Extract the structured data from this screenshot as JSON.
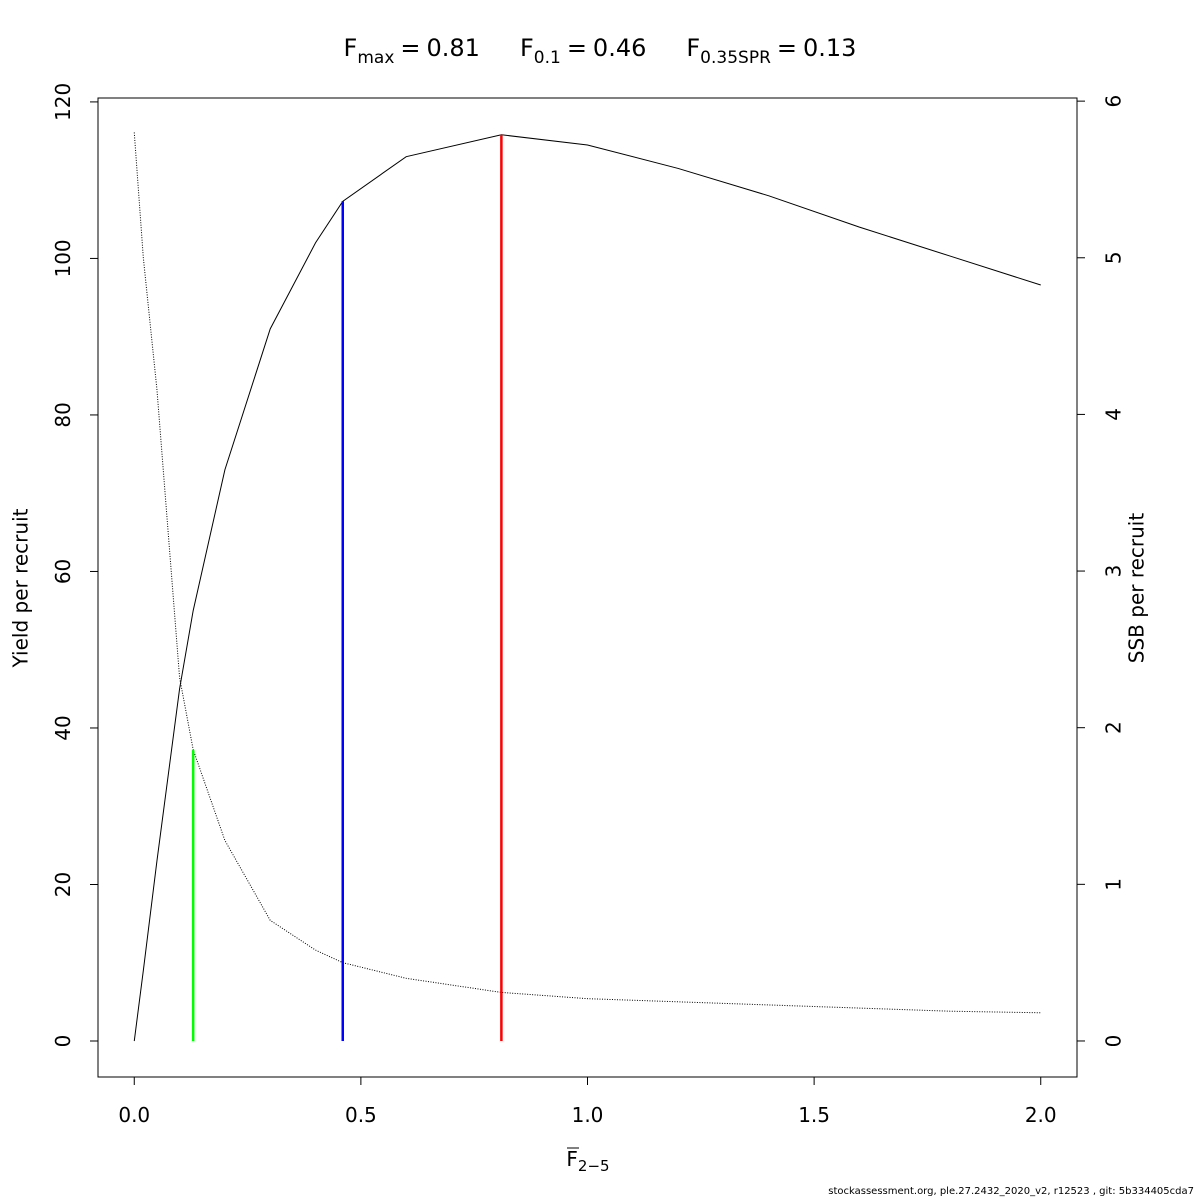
{
  "chart_data": {
    "type": "line",
    "references": [
      {
        "symbol": "F",
        "subscript": "max",
        "relation": "=",
        "x": 0.81,
        "ymax": 115.8,
        "color": "#ff0000"
      },
      {
        "symbol": "F",
        "subscript": "0.1",
        "relation": "=",
        "x": 0.46,
        "ymax": 107.3,
        "color": "#0000ff"
      },
      {
        "symbol": "F",
        "subscript": "0.35SPR",
        "relation": "=",
        "x": 0.13,
        "ymax": 37.2,
        "color": "#00ff00"
      }
    ],
    "xlabel": {
      "symbol": "F",
      "subscript": "2−5"
    },
    "ylabel": "Yield per recruit",
    "y2label": "SSB per recruit",
    "footer": "stockassessment.org, ple.27.2432_2020_v2, r12523 , git: 5b334405cda7",
    "x": [
      0,
      0.02,
      0.05,
      0.1,
      0.13,
      0.2,
      0.3,
      0.4,
      0.46,
      0.6,
      0.81,
      1.0,
      1.2,
      1.4,
      1.6,
      1.8,
      2.0
    ],
    "series": [
      {
        "name": "Yield per recruit",
        "color": "#000000",
        "axis": "y",
        "dash": "solid",
        "values": [
          0,
          9,
          23,
          45,
          55,
          73,
          91,
          102,
          107.3,
          113,
          115.8,
          114.5,
          111.5,
          108,
          104,
          100.3,
          96.6
        ]
      },
      {
        "name": "SSB per recruit",
        "color": "#000000",
        "axis": "y2",
        "dash": "dotted",
        "values": [
          5.8,
          5.0,
          4.16,
          2.32,
          1.86,
          1.28,
          0.77,
          0.58,
          0.5,
          0.4,
          0.31,
          0.27,
          0.25,
          0.23,
          0.21,
          0.19,
          0.18
        ]
      }
    ],
    "xlim": [
      -0.08,
      2.08
    ],
    "ylim": [
      -4.6,
      120.5
    ],
    "y2lim": [
      -0.23,
      6.02
    ],
    "xticks": [
      {
        "value": 0,
        "label": "0.0"
      },
      {
        "value": 0.5,
        "label": "0.5"
      },
      {
        "value": 1,
        "label": "1.0"
      },
      {
        "value": 1.5,
        "label": "1.5"
      },
      {
        "value": 2,
        "label": "2.0"
      }
    ],
    "yticks": [
      0,
      20,
      40,
      60,
      80,
      100,
      120
    ],
    "y2ticks": [
      0,
      1,
      2,
      3,
      4,
      5,
      6
    ]
  }
}
